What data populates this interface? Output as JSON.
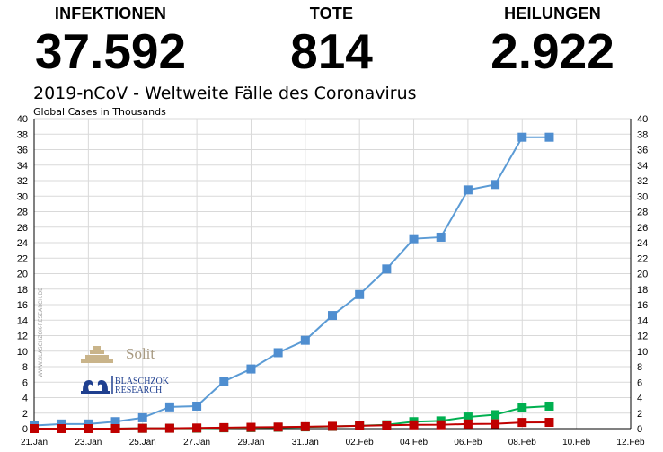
{
  "stats": [
    {
      "label": "INFEKTIONEN",
      "value": "37.592"
    },
    {
      "label": "TOTE",
      "value": "814"
    },
    {
      "label": "HEILUNGEN",
      "value": "2.922"
    }
  ],
  "chart": {
    "title": "2019-nCoV - Weltweite Fälle des Coronavirus",
    "subtitle": "Global Cases in Thousands"
  },
  "logos": {
    "solit": "Solit",
    "blaschzok_line1": "BLASCHZOK",
    "blaschzok_line2": "RESEARCH",
    "watermark": "WWW.BLASCHZOK-RESEARCH.DE"
  },
  "colors": {
    "infections": "#5b9bd5",
    "infections_marker": "#4f8ed0",
    "deaths": "#c00000",
    "recoveries": "#00b050",
    "grid": "#d9d9d9"
  },
  "chart_data": {
    "type": "line",
    "title": "2019-nCoV - Weltweite Fälle des Coronavirus",
    "ylabel": "Global Cases in Thousands",
    "ylim": [
      0,
      40
    ],
    "yticks": [
      0,
      2,
      4,
      6,
      8,
      10,
      12,
      14,
      16,
      18,
      20,
      22,
      24,
      26,
      28,
      30,
      32,
      34,
      36,
      38,
      40
    ],
    "xlim": [
      "2020-01-21",
      "2020-02-12"
    ],
    "xtick_dates": [
      "2020-01-21",
      "2020-01-23",
      "2020-01-25",
      "2020-01-27",
      "2020-01-29",
      "2020-01-31",
      "2020-02-02",
      "2020-02-04",
      "2020-02-06",
      "2020-02-08",
      "2020-02-10",
      "2020-02-12"
    ],
    "xtick_labels": [
      "21.Jan",
      "23.Jan",
      "25.Jan",
      "27.Jan",
      "29.Jan",
      "31.Jan",
      "02.Feb",
      "04.Feb",
      "06.Feb",
      "08.Feb",
      "10.Feb",
      "12.Feb"
    ],
    "grid": true,
    "x": [
      "2020-01-21",
      "2020-01-22",
      "2020-01-23",
      "2020-01-24",
      "2020-01-25",
      "2020-01-26",
      "2020-01-27",
      "2020-01-28",
      "2020-01-29",
      "2020-01-30",
      "2020-01-31",
      "2020-02-01",
      "2020-02-02",
      "2020-02-03",
      "2020-02-04",
      "2020-02-05",
      "2020-02-06",
      "2020-02-07",
      "2020-02-08",
      "2020-02-09"
    ],
    "series": [
      {
        "key": "infections",
        "values": [
          0.4,
          0.6,
          0.6,
          0.9,
          1.4,
          2.8,
          2.9,
          6.1,
          7.7,
          9.8,
          11.4,
          14.6,
          17.3,
          20.6,
          24.5,
          24.7,
          30.8,
          31.5,
          37.6,
          37.6
        ]
      },
      {
        "key": "recoveries",
        "values": [
          0.0,
          0.0,
          0.0,
          0.0,
          0.04,
          0.05,
          0.05,
          0.1,
          0.13,
          0.17,
          0.22,
          0.28,
          0.37,
          0.5,
          0.9,
          1.0,
          1.5,
          1.8,
          2.7,
          2.9
        ]
      },
      {
        "key": "deaths",
        "values": [
          0.0,
          0.0,
          0.0,
          0.0,
          0.04,
          0.05,
          0.08,
          0.13,
          0.17,
          0.2,
          0.25,
          0.3,
          0.36,
          0.43,
          0.49,
          0.5,
          0.6,
          0.63,
          0.8,
          0.81
        ]
      }
    ]
  }
}
